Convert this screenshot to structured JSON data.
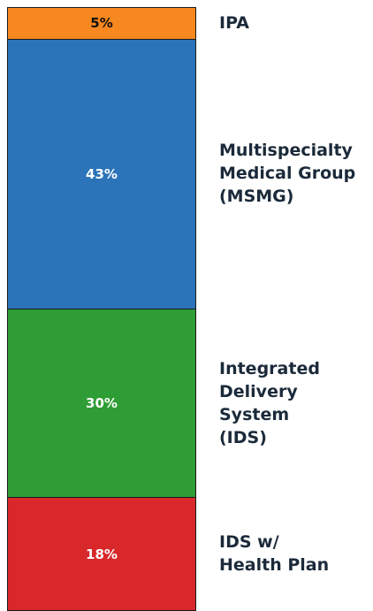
{
  "chart_data": {
    "type": "stacked-bar",
    "categories": [
      "IPA",
      "Multispecialty\nMedical Group\n(MSMG)",
      "Integrated\nDelivery System\n(IDS)",
      "IDS w/\nHealth Plan"
    ],
    "values": [
      5,
      43,
      30,
      18
    ],
    "value_labels": [
      "5%",
      "43%",
      "30%",
      "18%"
    ],
    "colors": [
      "#f7871f",
      "#2b74b9",
      "#2f9d35",
      "#d8282a"
    ],
    "label_colors": [
      "#111111",
      "#ffffff",
      "#ffffff",
      "#ffffff"
    ]
  }
}
